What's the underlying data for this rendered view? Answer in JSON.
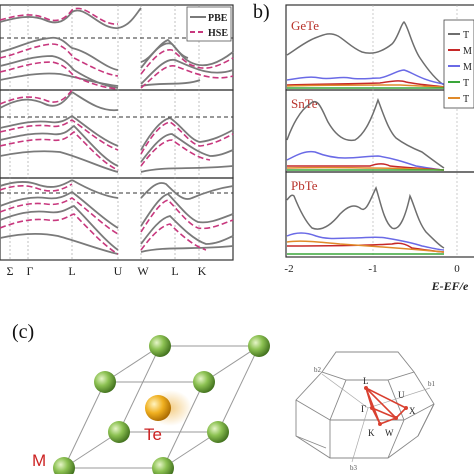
{
  "figure": {
    "panel_b_label": "b)",
    "panel_c_label": "(c)",
    "band_legend": {
      "pbe": "PBE",
      "hse": "HSE"
    },
    "kpath_labels": [
      "Σ",
      "Γ",
      "L",
      "U",
      "W",
      "L",
      "K"
    ],
    "dos_materials": [
      "GeTe",
      "SnTe",
      "PbTe"
    ],
    "dos_legend": [
      "T",
      "M",
      "M",
      "T",
      "T"
    ],
    "dos_x_ticks": [
      "-2",
      "-1",
      "0"
    ],
    "dos_x_label": "E-EF/e",
    "crystal_labels": {
      "metal": "M",
      "tellurium": "Te"
    },
    "bz_labels": [
      "L",
      "Γ",
      "U",
      "X",
      "K",
      "W"
    ],
    "bz_axis_labels": [
      "b1",
      "b2",
      "b3"
    ],
    "colors": {
      "pbe": "#7a7a7a",
      "hse": "#c8387e",
      "dos_total": "#6e6e6e",
      "dos_blue": "#6a6ae6",
      "dos_red": "#c62828",
      "dos_orange": "#e08a2a",
      "dos_green": "#3aa63a",
      "material_label": "#b8322a",
      "metal_atom": "#7cb342",
      "te_atom": "#f0b020",
      "crystal_label": "#cc2222",
      "bz_path": "#d94030"
    }
  }
}
